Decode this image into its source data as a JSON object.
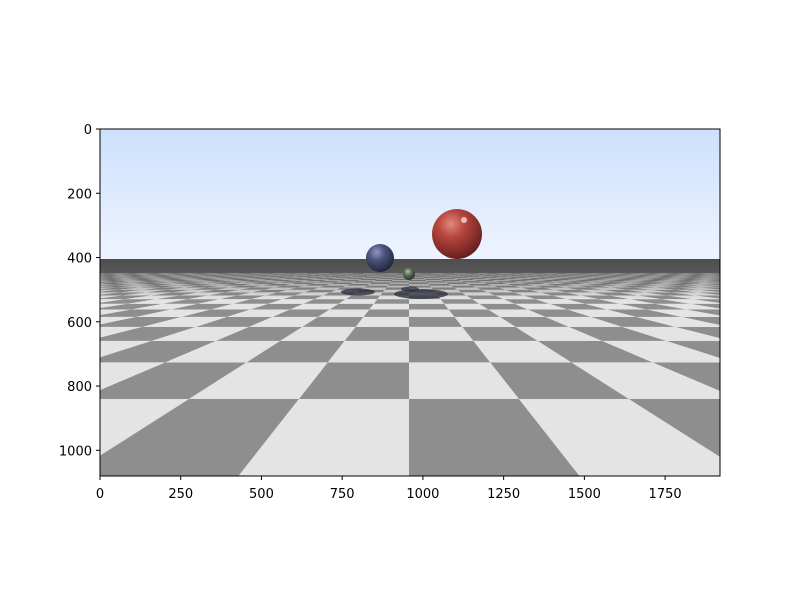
{
  "image": {
    "description_hidden": true,
    "axes": {
      "x_ticks": [
        "0",
        "250",
        "500",
        "750",
        "1000",
        "1250",
        "1500",
        "1750"
      ],
      "y_ticks": [
        "0",
        "200",
        "400",
        "600",
        "800",
        "1000"
      ],
      "x_range": [
        0,
        1920
      ],
      "y_range": [
        0,
        1080
      ]
    },
    "colors": {
      "sky_top": "#cfe0fd",
      "sky_bottom": "#eaf2ff",
      "floor_light": "#e6e6e6",
      "floor_dark": "#8c8c8c",
      "sphere_red": "#b3433c",
      "sphere_blue": "#4a5074",
      "sphere_green": "#5f7a5f"
    }
  }
}
